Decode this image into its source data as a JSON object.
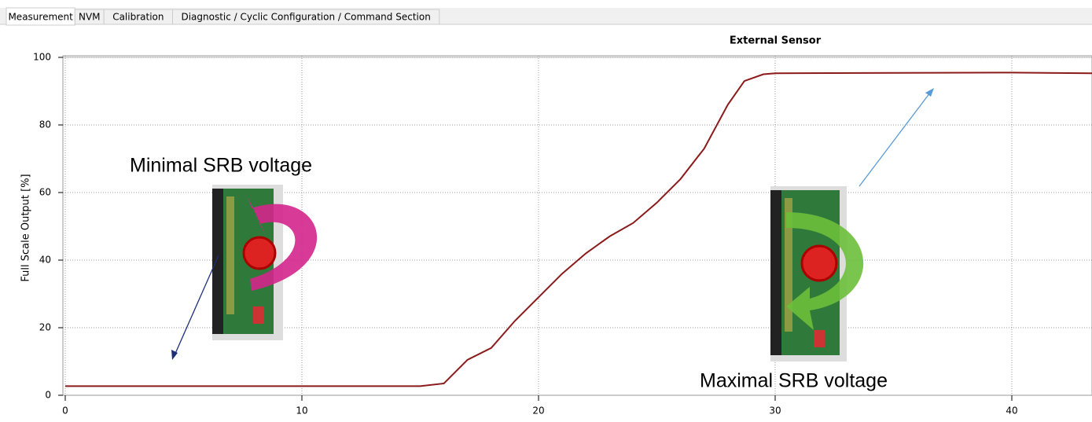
{
  "tabs": [
    "Measurement",
    "NVM",
    "Calibration",
    "Diagnostic / Cyclic Configuration / Command Section"
  ],
  "chart_data": {
    "type": "line",
    "title": "External Sensor",
    "y_label": "Full Scale Output [%]",
    "x": [
      0,
      15,
      16,
      17,
      18,
      19,
      20,
      21,
      22,
      23,
      24,
      25,
      26,
      27,
      28,
      28.7,
      29.5,
      30,
      35,
      40,
      43.4
    ],
    "series": [
      {
        "name": "External Sensor",
        "color": "#8b1a1a",
        "values": [
          2.7,
          2.7,
          3.5,
          10.5,
          14,
          22,
          29,
          36,
          42,
          47,
          51,
          57,
          64,
          73,
          86,
          93,
          95,
          95.3,
          95.4,
          95.5,
          95.3
        ]
      }
    ],
    "xlim": [
      0,
      43.4
    ],
    "xticks": [
      0,
      10,
      20,
      30,
      40
    ],
    "ylim": [
      0,
      100
    ],
    "yticks": [
      0,
      20,
      40,
      60,
      80,
      100
    ],
    "grid": true,
    "annotations": [
      "Minimal SRB voltage",
      "Maximal SRB voltage"
    ]
  }
}
